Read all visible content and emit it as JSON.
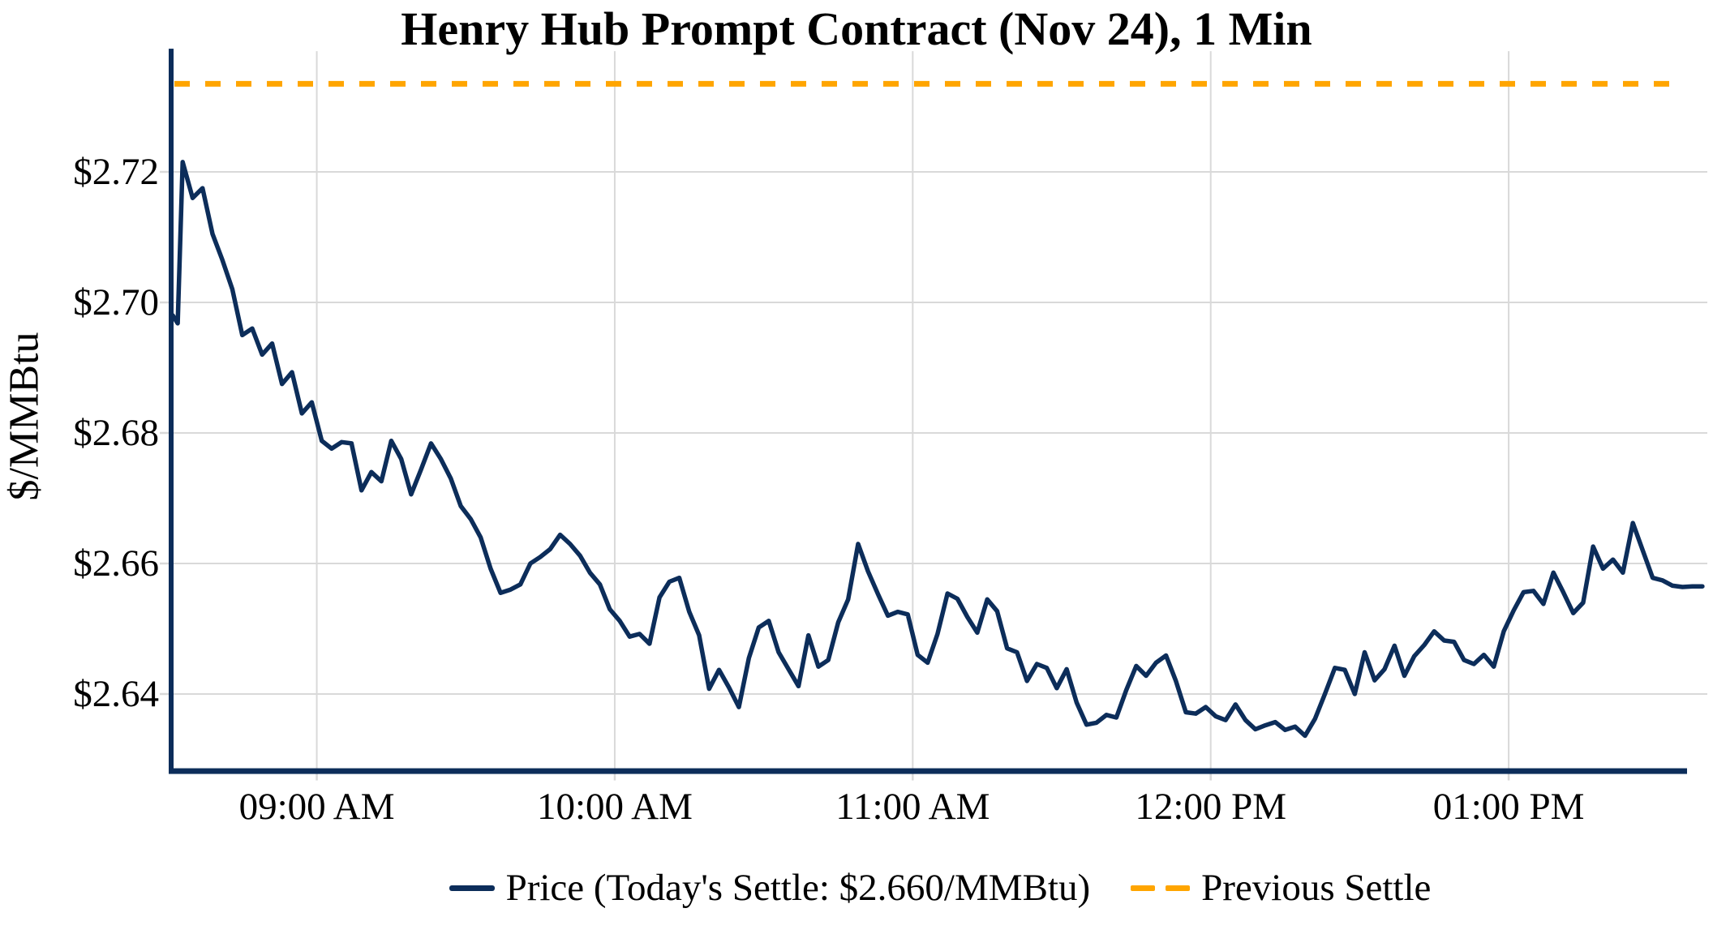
{
  "figure": {
    "background": "#ffffff"
  },
  "chart_data": {
    "type": "line",
    "title": "Henry Hub Prompt Contract (Nov 24), 1 Min",
    "ylabel": "$/MMBtu",
    "xlabel": "",
    "grid": true,
    "grid_color": "#d9d9d9",
    "axis_color": "#0c2d5a",
    "legend_position": "bottom-center",
    "xlim": [
      "08:31",
      "13:40"
    ],
    "ylim": [
      2.6285,
      2.7385
    ],
    "x_ticks": [
      {
        "label": "09:00 AM",
        "time": "09:00"
      },
      {
        "label": "10:00 AM",
        "time": "10:00"
      },
      {
        "label": "11:00 AM",
        "time": "11:00"
      },
      {
        "label": "12:00 PM",
        "time": "12:00"
      },
      {
        "label": "01:00 PM",
        "time": "13:00"
      }
    ],
    "y_ticks": [
      {
        "label": "$2.64",
        "value": 2.64
      },
      {
        "label": "$2.66",
        "value": 2.66
      },
      {
        "label": "$2.68",
        "value": 2.68
      },
      {
        "label": "$2.70",
        "value": 2.7
      },
      {
        "label": "$2.72",
        "value": 2.72
      }
    ],
    "today_settle": 2.66,
    "previous_settle": 2.7335,
    "series": [
      {
        "name": "Price (Today's Settle: $2.660/MMBtu)",
        "color": "#0c2d5a",
        "style": "solid",
        "points": [
          [
            "08:31",
            2.698
          ],
          [
            "08:32",
            2.6968
          ],
          [
            "08:33",
            2.7215
          ],
          [
            "08:35",
            2.716
          ],
          [
            "08:37",
            2.7175
          ],
          [
            "08:39",
            2.7105
          ],
          [
            "08:41",
            2.7065
          ],
          [
            "08:43",
            2.702
          ],
          [
            "08:45",
            2.695
          ],
          [
            "08:47",
            2.696
          ],
          [
            "08:49",
            2.692
          ],
          [
            "08:51",
            2.6937
          ],
          [
            "08:53",
            2.6875
          ],
          [
            "08:55",
            2.6893
          ],
          [
            "08:57",
            2.683
          ],
          [
            "08:59",
            2.6847
          ],
          [
            "09:01",
            2.6788
          ],
          [
            "09:03",
            2.6776
          ],
          [
            "09:05",
            2.6786
          ],
          [
            "09:07",
            2.6784
          ],
          [
            "09:09",
            2.6712
          ],
          [
            "09:11",
            2.674
          ],
          [
            "09:13",
            2.6726
          ],
          [
            "09:15",
            2.6788
          ],
          [
            "09:17",
            2.676
          ],
          [
            "09:19",
            2.6706
          ],
          [
            "09:21",
            2.6744
          ],
          [
            "09:23",
            2.6784
          ],
          [
            "09:25",
            2.676
          ],
          [
            "09:27",
            2.673
          ],
          [
            "09:29",
            2.6688
          ],
          [
            "09:31",
            2.6668
          ],
          [
            "09:33",
            2.664
          ],
          [
            "09:35",
            2.6592
          ],
          [
            "09:37",
            2.6555
          ],
          [
            "09:39",
            2.656
          ],
          [
            "09:41",
            2.6568
          ],
          [
            "09:43",
            2.66
          ],
          [
            "09:45",
            2.661
          ],
          [
            "09:47",
            2.6622
          ],
          [
            "09:49",
            2.6644
          ],
          [
            "09:51",
            2.663
          ],
          [
            "09:53",
            2.6612
          ],
          [
            "09:55",
            2.6586
          ],
          [
            "09:57",
            2.6568
          ],
          [
            "09:59",
            2.653
          ],
          [
            "10:01",
            2.6512
          ],
          [
            "10:03",
            2.6488
          ],
          [
            "10:05",
            2.6492
          ],
          [
            "10:07",
            2.6477
          ],
          [
            "10:09",
            2.6548
          ],
          [
            "10:11",
            2.6572
          ],
          [
            "10:13",
            2.6578
          ],
          [
            "10:15",
            2.6526
          ],
          [
            "10:17",
            2.649
          ],
          [
            "10:19",
            2.6408
          ],
          [
            "10:21",
            2.6437
          ],
          [
            "10:23",
            2.641
          ],
          [
            "10:25",
            2.638
          ],
          [
            "10:27",
            2.6455
          ],
          [
            "10:29",
            2.6502
          ],
          [
            "10:31",
            2.6512
          ],
          [
            "10:33",
            2.6464
          ],
          [
            "10:35",
            2.6438
          ],
          [
            "10:37",
            2.6412
          ],
          [
            "10:39",
            2.649
          ],
          [
            "10:41",
            2.6442
          ],
          [
            "10:43",
            2.6452
          ],
          [
            "10:45",
            2.651
          ],
          [
            "10:47",
            2.6545
          ],
          [
            "10:49",
            2.663
          ],
          [
            "10:51",
            2.6588
          ],
          [
            "10:53",
            2.6553
          ],
          [
            "10:55",
            2.652
          ],
          [
            "10:57",
            2.6526
          ],
          [
            "10:59",
            2.6522
          ],
          [
            "11:01",
            2.646
          ],
          [
            "11:03",
            2.6448
          ],
          [
            "11:05",
            2.6492
          ],
          [
            "11:07",
            2.6554
          ],
          [
            "11:09",
            2.6546
          ],
          [
            "11:11",
            2.6518
          ],
          [
            "11:13",
            2.6494
          ],
          [
            "11:15",
            2.6545
          ],
          [
            "11:17",
            2.6527
          ],
          [
            "11:19",
            2.647
          ],
          [
            "11:21",
            2.6464
          ],
          [
            "11:23",
            2.642
          ],
          [
            "11:25",
            2.6446
          ],
          [
            "11:27",
            2.644
          ],
          [
            "11:29",
            2.6409
          ],
          [
            "11:31",
            2.6438
          ],
          [
            "11:33",
            2.6387
          ],
          [
            "11:35",
            2.6353
          ],
          [
            "11:37",
            2.6356
          ],
          [
            "11:39",
            2.6368
          ],
          [
            "11:41",
            2.6364
          ],
          [
            "11:43",
            2.6406
          ],
          [
            "11:45",
            2.6443
          ],
          [
            "11:47",
            2.6428
          ],
          [
            "11:49",
            2.6448
          ],
          [
            "11:51",
            2.6459
          ],
          [
            "11:53",
            2.642
          ],
          [
            "11:55",
            2.6372
          ],
          [
            "11:57",
            2.637
          ],
          [
            "11:59",
            2.638
          ],
          [
            "12:01",
            2.6366
          ],
          [
            "12:03",
            2.636
          ],
          [
            "12:05",
            2.6384
          ],
          [
            "12:07",
            2.636
          ],
          [
            "12:09",
            2.6346
          ],
          [
            "12:11",
            2.6352
          ],
          [
            "12:13",
            2.6357
          ],
          [
            "12:15",
            2.6345
          ],
          [
            "12:17",
            2.635
          ],
          [
            "12:19",
            2.6336
          ],
          [
            "12:21",
            2.6362
          ],
          [
            "12:23",
            2.64
          ],
          [
            "12:25",
            2.644
          ],
          [
            "12:27",
            2.6437
          ],
          [
            "12:29",
            2.64
          ],
          [
            "12:31",
            2.6464
          ],
          [
            "12:33",
            2.6421
          ],
          [
            "12:35",
            2.6438
          ],
          [
            "12:37",
            2.6474
          ],
          [
            "12:39",
            2.6428
          ],
          [
            "12:41",
            2.6458
          ],
          [
            "12:43",
            2.6475
          ],
          [
            "12:45",
            2.6496
          ],
          [
            "12:47",
            2.6482
          ],
          [
            "12:49",
            2.648
          ],
          [
            "12:51",
            2.6452
          ],
          [
            "12:53",
            2.6446
          ],
          [
            "12:55",
            2.646
          ],
          [
            "12:57",
            2.6442
          ],
          [
            "12:59",
            2.6496
          ],
          [
            "13:01",
            2.6528
          ],
          [
            "13:03",
            2.6556
          ],
          [
            "13:05",
            2.6558
          ],
          [
            "13:07",
            2.6538
          ],
          [
            "13:09",
            2.6586
          ],
          [
            "13:11",
            2.6556
          ],
          [
            "13:13",
            2.6524
          ],
          [
            "13:15",
            2.654
          ],
          [
            "13:17",
            2.6626
          ],
          [
            "13:19",
            2.6592
          ],
          [
            "13:21",
            2.6606
          ],
          [
            "13:23",
            2.6586
          ],
          [
            "13:25",
            2.6662
          ],
          [
            "13:27",
            2.662
          ],
          [
            "13:29",
            2.6578
          ],
          [
            "13:31",
            2.6574
          ],
          [
            "13:33",
            2.6566
          ],
          [
            "13:35",
            2.6564
          ],
          [
            "13:37",
            2.6565
          ],
          [
            "13:39",
            2.6565
          ]
        ]
      },
      {
        "name": "Previous Settle",
        "color": "#ffa500",
        "style": "dashed",
        "value": 2.7335
      }
    ]
  },
  "legend": {
    "price_label": "Price (Today's Settle: $2.660/MMBtu)",
    "previous_settle_label": "Previous Settle"
  }
}
